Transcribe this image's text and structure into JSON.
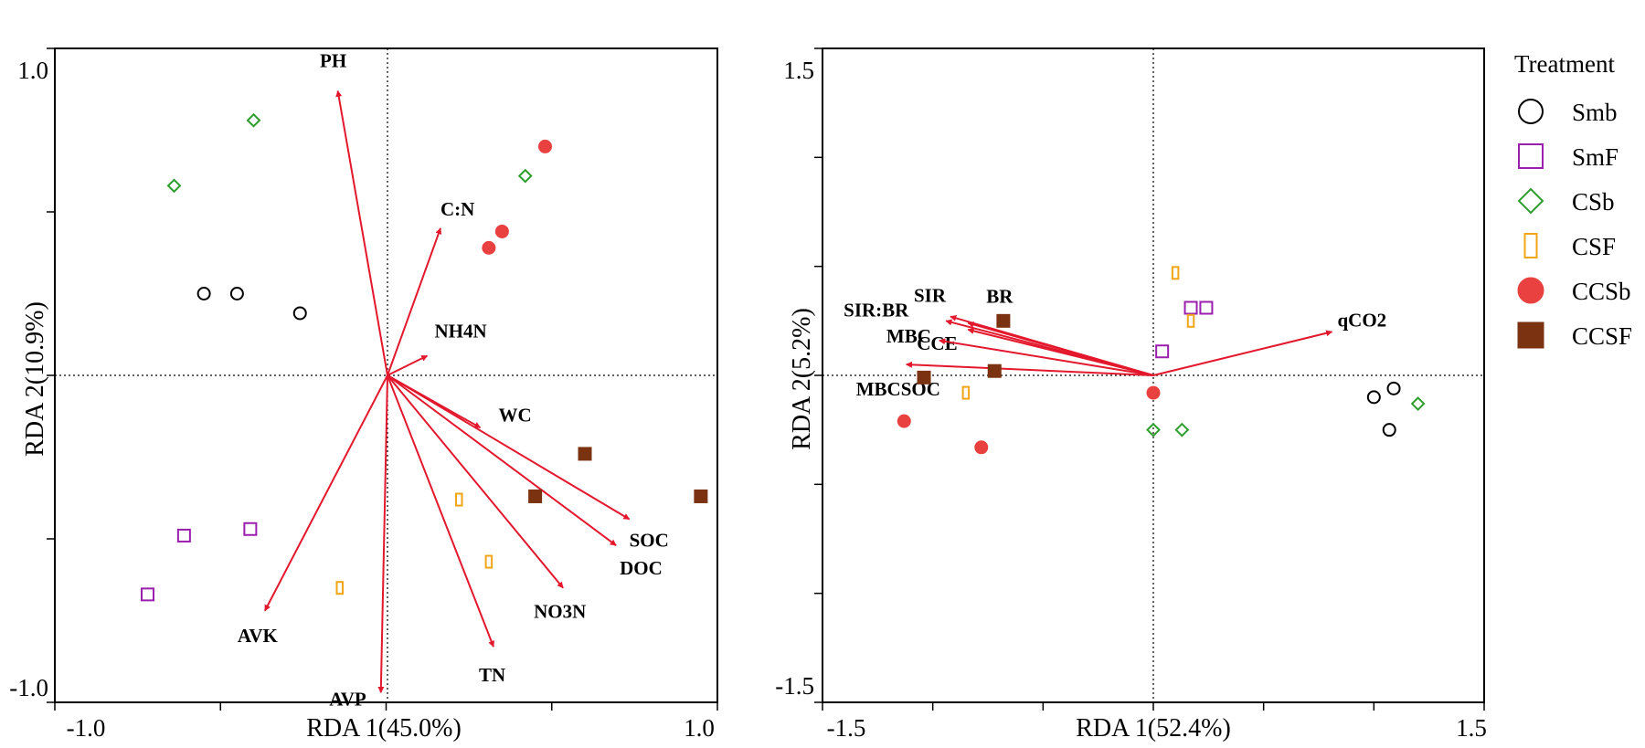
{
  "legend": {
    "title": "Treatment",
    "entries": [
      {
        "name": "Smb",
        "marker": "circle-open",
        "color": "#000000"
      },
      {
        "name": "SmF",
        "marker": "square-open",
        "color": "#9b1fae"
      },
      {
        "name": "CSb",
        "marker": "diamond-open",
        "color": "#2e9e2e"
      },
      {
        "name": "CSF",
        "marker": "rect-open",
        "color": "#f2a516"
      },
      {
        "name": "CCSb",
        "marker": "circle-filled",
        "color": "#e8413f"
      },
      {
        "name": "CCSF",
        "marker": "square-filled",
        "color": "#7a3210"
      }
    ]
  },
  "colors": {
    "arrow": "#e3182d"
  },
  "chart_data": [
    {
      "type": "scatter",
      "xlabel": "RDA 1(45.0%)",
      "ylabel": "RDA 2(10.9%)",
      "xlim": [
        -1.0,
        1.0
      ],
      "ylim": [
        -1.0,
        1.0
      ],
      "xticks": [
        -1.0,
        1.0
      ],
      "yticks": [
        -1.0,
        1.0
      ],
      "xtick_labels": [
        "-1.0",
        "1.0"
      ],
      "ytick_labels": [
        "-1.0",
        "1.0"
      ],
      "minor_ticks": [
        -0.5,
        0.5
      ],
      "arrows": [
        {
          "label": "PH",
          "x": -0.15,
          "y": 0.87
        },
        {
          "label": "C:N",
          "x": 0.16,
          "y": 0.45
        },
        {
          "label": "NH4N",
          "x": 0.12,
          "y": 0.06
        },
        {
          "label": "WC",
          "x": 0.28,
          "y": -0.16
        },
        {
          "label": "SOC",
          "x": 0.73,
          "y": -0.44
        },
        {
          "label": "DOC",
          "x": 0.69,
          "y": -0.52
        },
        {
          "label": "NO3N",
          "x": 0.53,
          "y": -0.65
        },
        {
          "label": "TN",
          "x": 0.32,
          "y": -0.83
        },
        {
          "label": "AVK",
          "x": -0.37,
          "y": -0.72
        },
        {
          "label": "AVP",
          "x": -0.02,
          "y": -0.97
        }
      ],
      "series": [
        {
          "name": "Smb",
          "points": [
            [
              -0.55,
              0.25
            ],
            [
              -0.45,
              0.25
            ],
            [
              -0.26,
              0.19
            ]
          ]
        },
        {
          "name": "SmF",
          "points": [
            [
              -0.61,
              -0.49
            ],
            [
              -0.41,
              -0.47
            ],
            [
              -0.72,
              -0.67
            ]
          ]
        },
        {
          "name": "CSb",
          "points": [
            [
              -0.64,
              0.58
            ],
            [
              -0.4,
              0.78
            ],
            [
              0.42,
              0.61
            ]
          ]
        },
        {
          "name": "CSF",
          "points": [
            [
              0.22,
              -0.38
            ],
            [
              0.31,
              -0.57
            ],
            [
              -0.14,
              -0.65
            ]
          ]
        },
        {
          "name": "CCSb",
          "points": [
            [
              0.48,
              0.7
            ],
            [
              0.35,
              0.44
            ],
            [
              0.31,
              0.39
            ]
          ]
        },
        {
          "name": "CCSF",
          "points": [
            [
              0.6,
              -0.24
            ],
            [
              0.45,
              -0.37
            ],
            [
              0.95,
              -0.37
            ]
          ]
        }
      ]
    },
    {
      "type": "scatter",
      "xlabel": "RDA 1(52.4%)",
      "ylabel": "RDA 2(5.2%)",
      "xlim": [
        -1.5,
        1.5
      ],
      "ylim": [
        -1.5,
        1.5
      ],
      "xticks": [
        -1.5,
        1.5
      ],
      "yticks": [
        -1.5,
        1.5
      ],
      "xtick_labels": [
        "-1.5",
        "1.5"
      ],
      "ytick_labels": [
        "-1.5",
        "1.5"
      ],
      "minor_ticks": [
        -1.0,
        -0.5,
        0.5,
        1.0
      ],
      "arrows": [
        {
          "label": "SIR",
          "x": -0.92,
          "y": 0.27
        },
        {
          "label": "SIR:BR",
          "x": -0.94,
          "y": 0.25
        },
        {
          "label": "BR",
          "x": -0.84,
          "y": 0.24
        },
        {
          "label": "CCE",
          "x": -0.84,
          "y": 0.21
        },
        {
          "label": "MBC",
          "x": -0.97,
          "y": 0.16
        },
        {
          "label": "MBCSOC",
          "x": -1.12,
          "y": 0.05
        },
        {
          "label": "qCO2",
          "x": 0.81,
          "y": 0.2
        }
      ],
      "series": [
        {
          "name": "Smb",
          "points": [
            [
              1.0,
              -0.1
            ],
            [
              1.09,
              -0.06
            ],
            [
              1.07,
              -0.25
            ]
          ]
        },
        {
          "name": "SmF",
          "points": [
            [
              0.17,
              0.31
            ],
            [
              0.24,
              0.31
            ],
            [
              0.04,
              0.11
            ]
          ]
        },
        {
          "name": "CSb",
          "points": [
            [
              0.0,
              -0.25
            ],
            [
              0.13,
              -0.25
            ],
            [
              1.2,
              -0.13
            ]
          ]
        },
        {
          "name": "CSF",
          "points": [
            [
              0.1,
              0.47
            ],
            [
              0.17,
              0.25
            ],
            [
              -0.85,
              -0.08
            ]
          ]
        },
        {
          "name": "CCSb",
          "points": [
            [
              0.0,
              -0.08
            ],
            [
              -1.13,
              -0.21
            ],
            [
              -0.78,
              -0.33
            ]
          ]
        },
        {
          "name": "CCSF",
          "points": [
            [
              -0.68,
              0.25
            ],
            [
              -1.04,
              -0.01
            ],
            [
              -0.72,
              0.02
            ]
          ]
        }
      ]
    }
  ]
}
